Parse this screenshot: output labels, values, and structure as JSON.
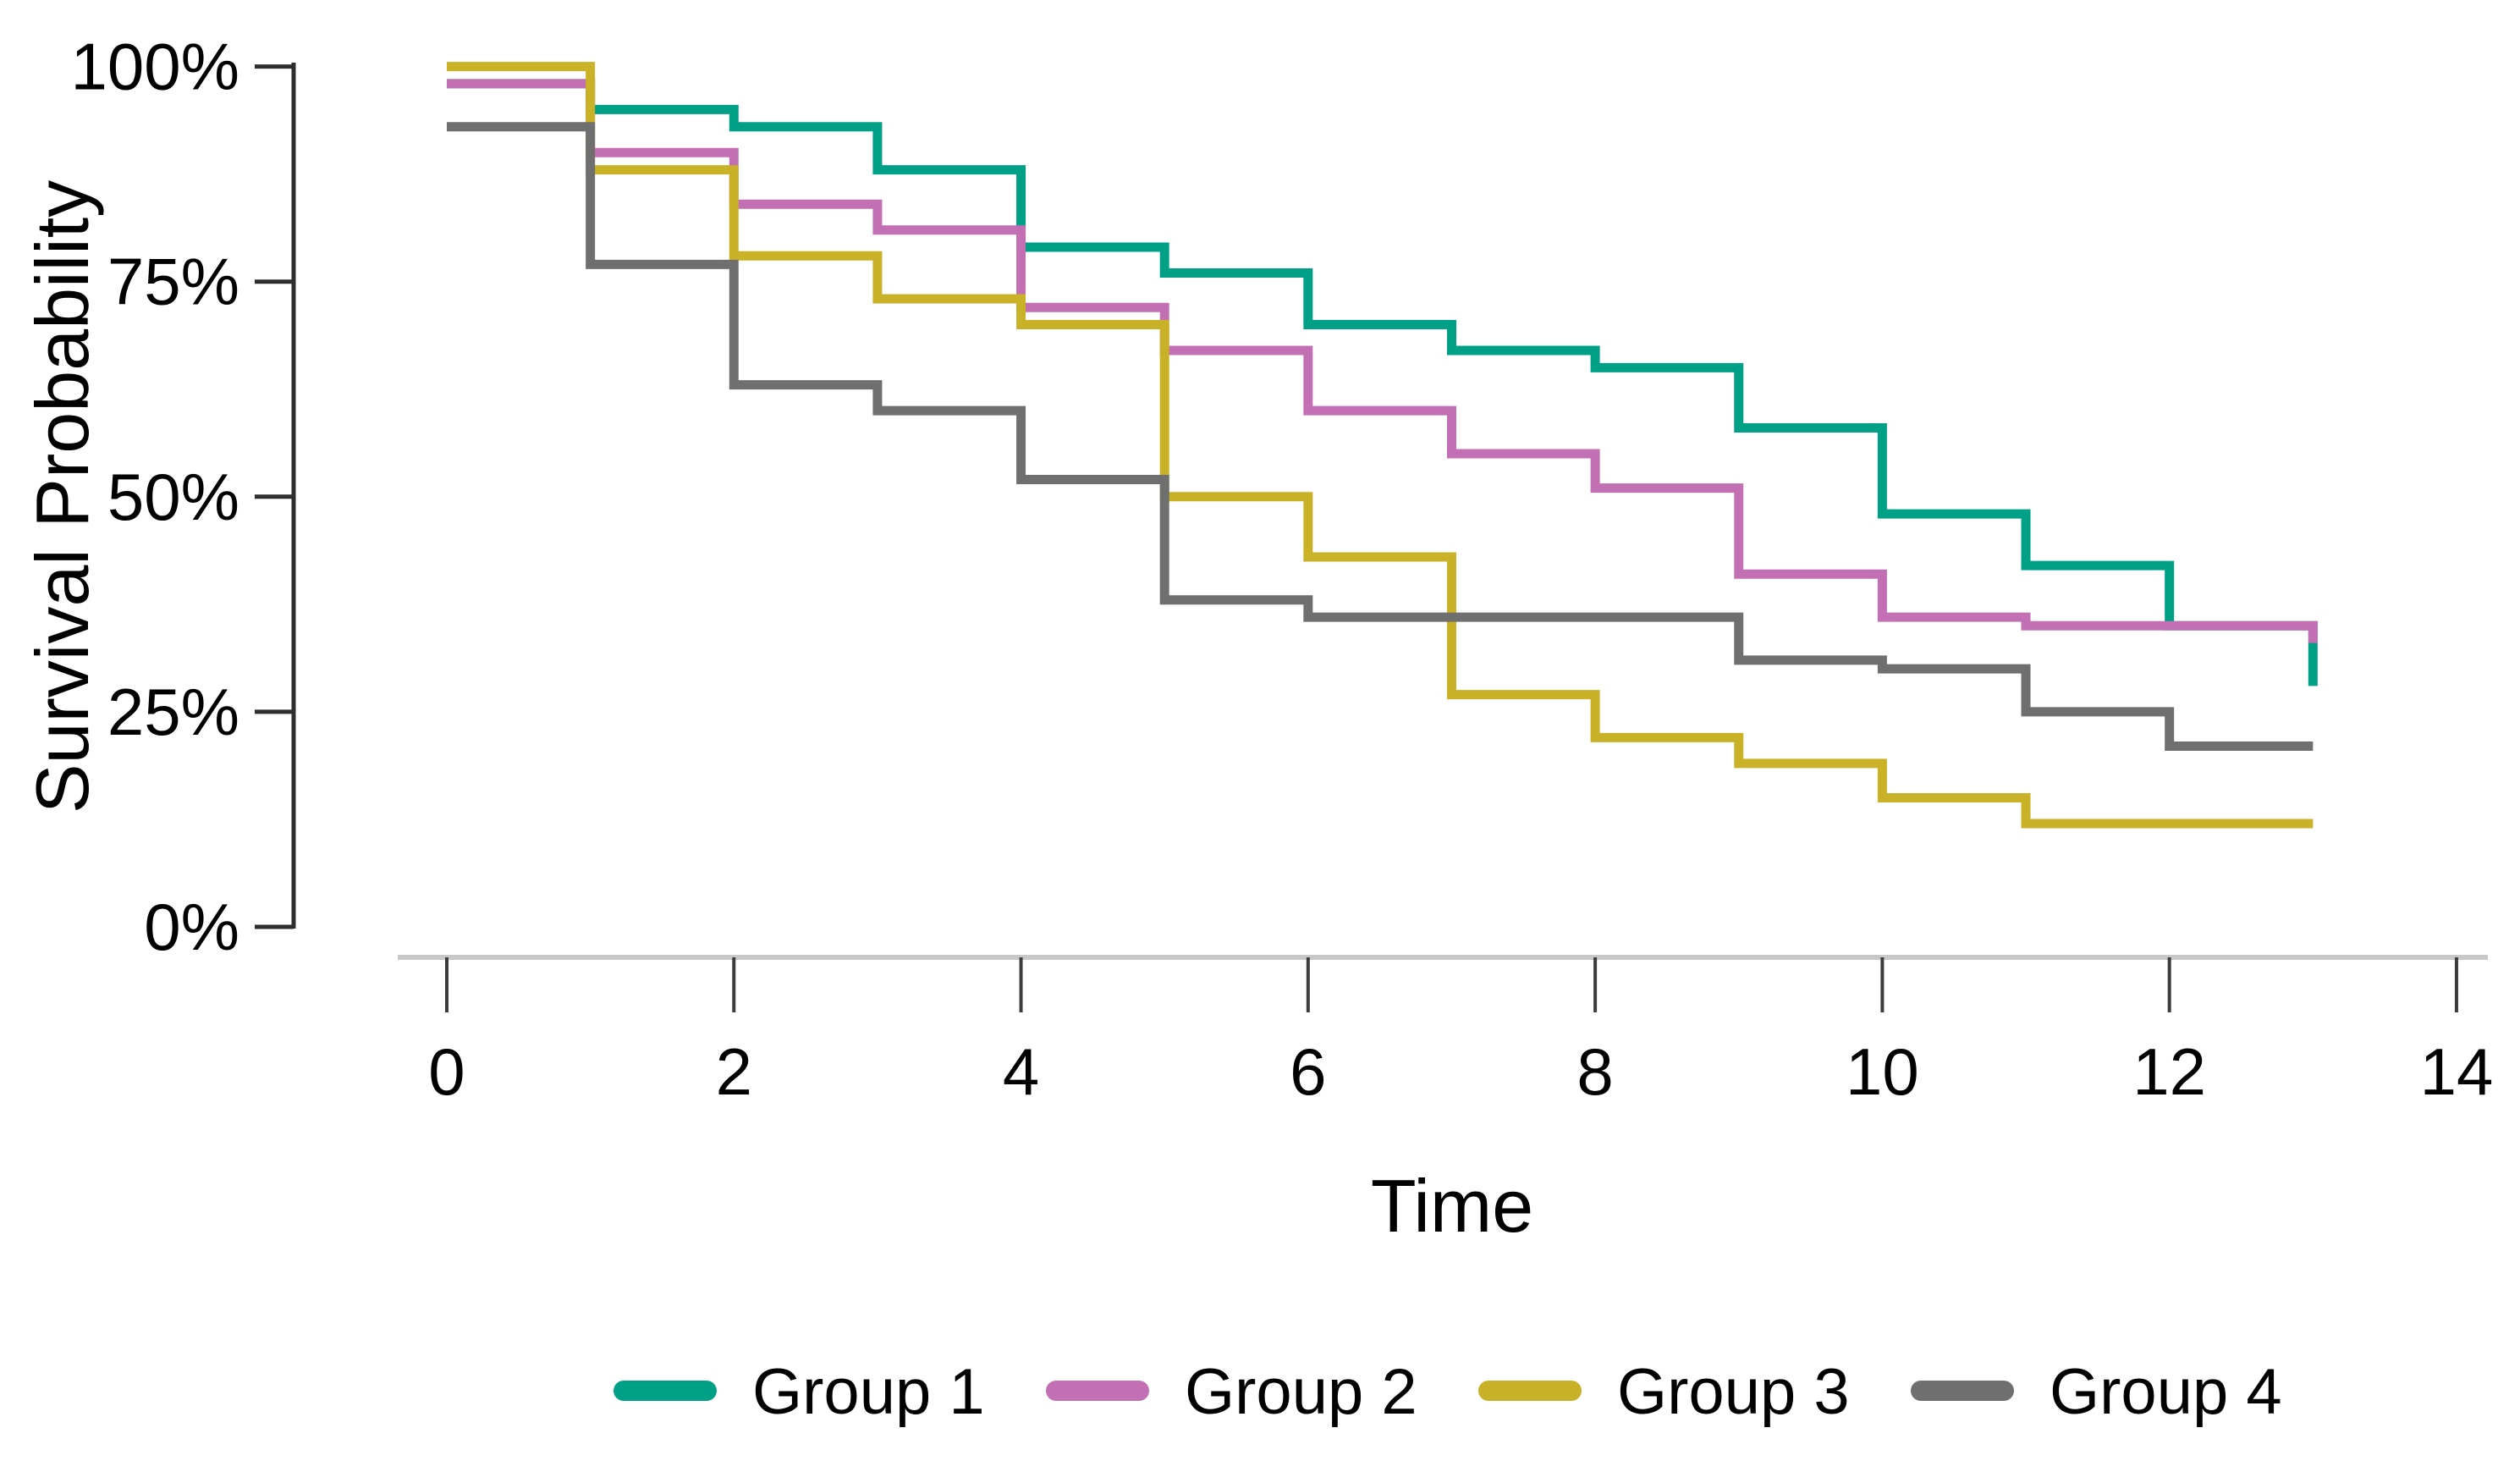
{
  "chart_data": {
    "type": "line",
    "subtype": "kaplan-meier-step",
    "title": "",
    "xlabel": "Time",
    "ylabel": "Survival Probability",
    "xlim": [
      0,
      14
    ],
    "ylim_percent": [
      0,
      100
    ],
    "grid": false,
    "legend_position": "bottom",
    "x_ticks": [
      {
        "value": 0,
        "label": "0"
      },
      {
        "value": 2,
        "label": "2"
      },
      {
        "value": 4,
        "label": "4"
      },
      {
        "value": 6,
        "label": "6"
      },
      {
        "value": 8,
        "label": "8"
      },
      {
        "value": 10,
        "label": "10"
      },
      {
        "value": 12,
        "label": "12"
      },
      {
        "value": 14,
        "label": "14"
      }
    ],
    "y_ticks": [
      {
        "percent": 100,
        "label": "100%"
      },
      {
        "percent": 75,
        "label": "75%"
      },
      {
        "percent": 50,
        "label": "50%"
      },
      {
        "percent": 25,
        "label": "25%"
      },
      {
        "percent": 0,
        "label": "0%"
      }
    ],
    "step_times": [
      0,
      1,
      2,
      3,
      4,
      5,
      6,
      7,
      8,
      9,
      10,
      11,
      12
    ],
    "end_time": 13,
    "series": [
      {
        "name": "Group 1",
        "color": "#00A087",
        "values_percent": [
          98,
          95,
          93,
          88,
          79,
          76,
          70,
          67,
          65,
          58,
          48,
          42,
          35
        ],
        "end_value_percent": 28
      },
      {
        "name": "Group 2",
        "color": "#C36FB4",
        "values_percent": [
          98,
          90,
          84,
          81,
          72,
          67,
          60,
          55,
          51,
          41,
          36,
          35,
          35
        ],
        "end_value_percent": 33
      },
      {
        "name": "Group 3",
        "color": "#C9B227",
        "values_percent": [
          100,
          88,
          78,
          73,
          70,
          50,
          43,
          27,
          22,
          19,
          15,
          12,
          12
        ],
        "end_value_percent": 12
      },
      {
        "name": "Group 4",
        "color": "#6F6F6F",
        "values_percent": [
          93,
          77,
          63,
          60,
          52,
          38,
          36,
          36,
          36,
          31,
          30,
          25,
          21
        ],
        "end_value_percent": 21
      }
    ]
  },
  "legend": {
    "items": [
      {
        "label": "Group 1",
        "color": "#00A087"
      },
      {
        "label": "Group 2",
        "color": "#C36FB4"
      },
      {
        "label": "Group 3",
        "color": "#C9B227"
      },
      {
        "label": "Group 4",
        "color": "#6F6F6F"
      }
    ]
  },
  "axes": {
    "xlabel": "Time",
    "ylabel": "Survival Probability"
  },
  "colors": {
    "y_axis_line": "#2E2E2E",
    "y_tick": "#2E2E2E",
    "x_axis_line": "#C8C8C8",
    "x_tick": "#3C3C3C",
    "text": "#000000",
    "background": "#FFFFFF"
  }
}
